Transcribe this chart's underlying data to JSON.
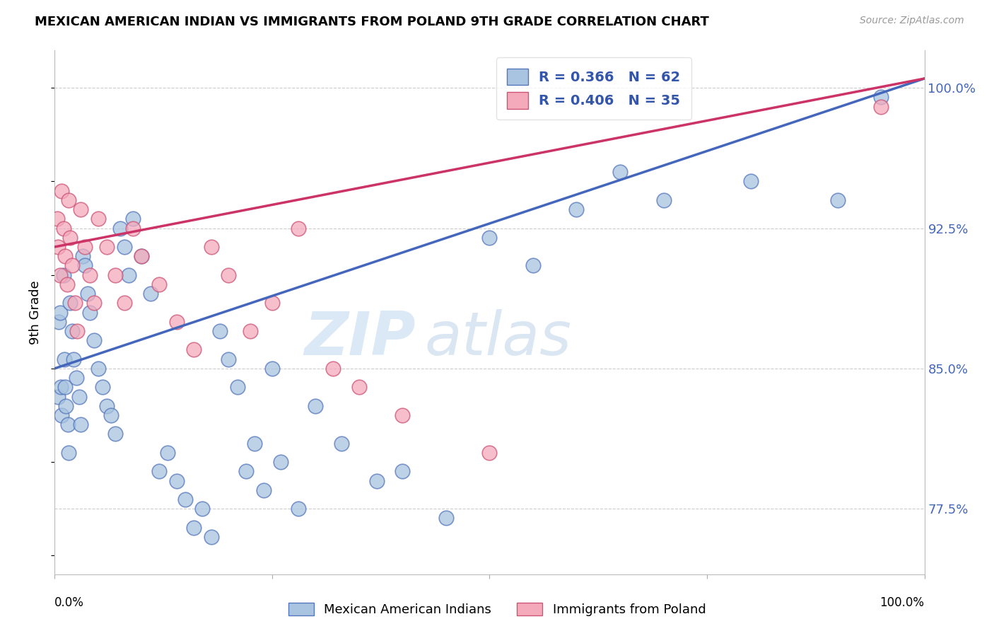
{
  "title": "MEXICAN AMERICAN INDIAN VS IMMIGRANTS FROM POLAND 9TH GRADE CORRELATION CHART",
  "source": "Source: ZipAtlas.com",
  "ylabel": "9th Grade",
  "right_yticks": [
    77.5,
    85.0,
    92.5,
    100.0
  ],
  "right_ytick_labels": [
    "77.5%",
    "85.0%",
    "92.5%",
    "100.0%"
  ],
  "blue_label": "Mexican American Indians",
  "pink_label": "Immigrants from Poland",
  "blue_R": "0.366",
  "blue_N": "62",
  "pink_R": "0.406",
  "pink_N": "35",
  "blue_color": "#A8C4E0",
  "pink_color": "#F5AABC",
  "blue_edge_color": "#5577BB",
  "pink_edge_color": "#CC5577",
  "blue_line_color": "#4466BB",
  "pink_line_color": "#CC3366",
  "ylim": [
    74,
    102
  ],
  "xlim": [
    0,
    100
  ],
  "blue_trendline_x": [
    0,
    100
  ],
  "blue_trendline_y": [
    85.0,
    100.5
  ],
  "pink_trendline_x": [
    0,
    100
  ],
  "pink_trendline_y": [
    91.5,
    100.5
  ],
  "blue_scatter_x": [
    0.4,
    0.5,
    0.6,
    0.7,
    0.8,
    1.0,
    1.1,
    1.2,
    1.3,
    1.5,
    1.6,
    1.8,
    2.0,
    2.2,
    2.5,
    2.8,
    3.0,
    3.2,
    3.5,
    3.8,
    4.0,
    4.5,
    5.0,
    5.5,
    6.0,
    6.5,
    7.0,
    7.5,
    8.0,
    8.5,
    9.0,
    10.0,
    11.0,
    12.0,
    13.0,
    14.0,
    15.0,
    16.0,
    17.0,
    18.0,
    19.0,
    20.0,
    21.0,
    22.0,
    23.0,
    24.0,
    25.0,
    26.0,
    28.0,
    30.0,
    33.0,
    37.0,
    40.0,
    45.0,
    50.0,
    55.0,
    60.0,
    65.0,
    70.0,
    80.0,
    90.0,
    95.0
  ],
  "blue_scatter_y": [
    83.5,
    87.5,
    88.0,
    84.0,
    82.5,
    90.0,
    85.5,
    84.0,
    83.0,
    82.0,
    80.5,
    88.5,
    87.0,
    85.5,
    84.5,
    83.5,
    82.0,
    91.0,
    90.5,
    89.0,
    88.0,
    86.5,
    85.0,
    84.0,
    83.0,
    82.5,
    81.5,
    92.5,
    91.5,
    90.0,
    93.0,
    91.0,
    89.0,
    79.5,
    80.5,
    79.0,
    78.0,
    76.5,
    77.5,
    76.0,
    87.0,
    85.5,
    84.0,
    79.5,
    81.0,
    78.5,
    85.0,
    80.0,
    77.5,
    83.0,
    81.0,
    79.0,
    79.5,
    77.0,
    92.0,
    90.5,
    93.5,
    95.5,
    94.0,
    95.0,
    94.0,
    99.5
  ],
  "pink_scatter_x": [
    0.3,
    0.4,
    0.6,
    0.8,
    1.0,
    1.2,
    1.4,
    1.6,
    1.8,
    2.0,
    2.3,
    2.6,
    3.0,
    3.5,
    4.0,
    4.5,
    5.0,
    6.0,
    7.0,
    8.0,
    9.0,
    10.0,
    12.0,
    14.0,
    16.0,
    18.0,
    20.0,
    22.5,
    25.0,
    28.0,
    32.0,
    35.0,
    40.0,
    50.0,
    95.0
  ],
  "pink_scatter_y": [
    93.0,
    91.5,
    90.0,
    94.5,
    92.5,
    91.0,
    89.5,
    94.0,
    92.0,
    90.5,
    88.5,
    87.0,
    93.5,
    91.5,
    90.0,
    88.5,
    93.0,
    91.5,
    90.0,
    88.5,
    92.5,
    91.0,
    89.5,
    87.5,
    86.0,
    91.5,
    90.0,
    87.0,
    88.5,
    92.5,
    85.0,
    84.0,
    82.5,
    80.5,
    99.0
  ]
}
